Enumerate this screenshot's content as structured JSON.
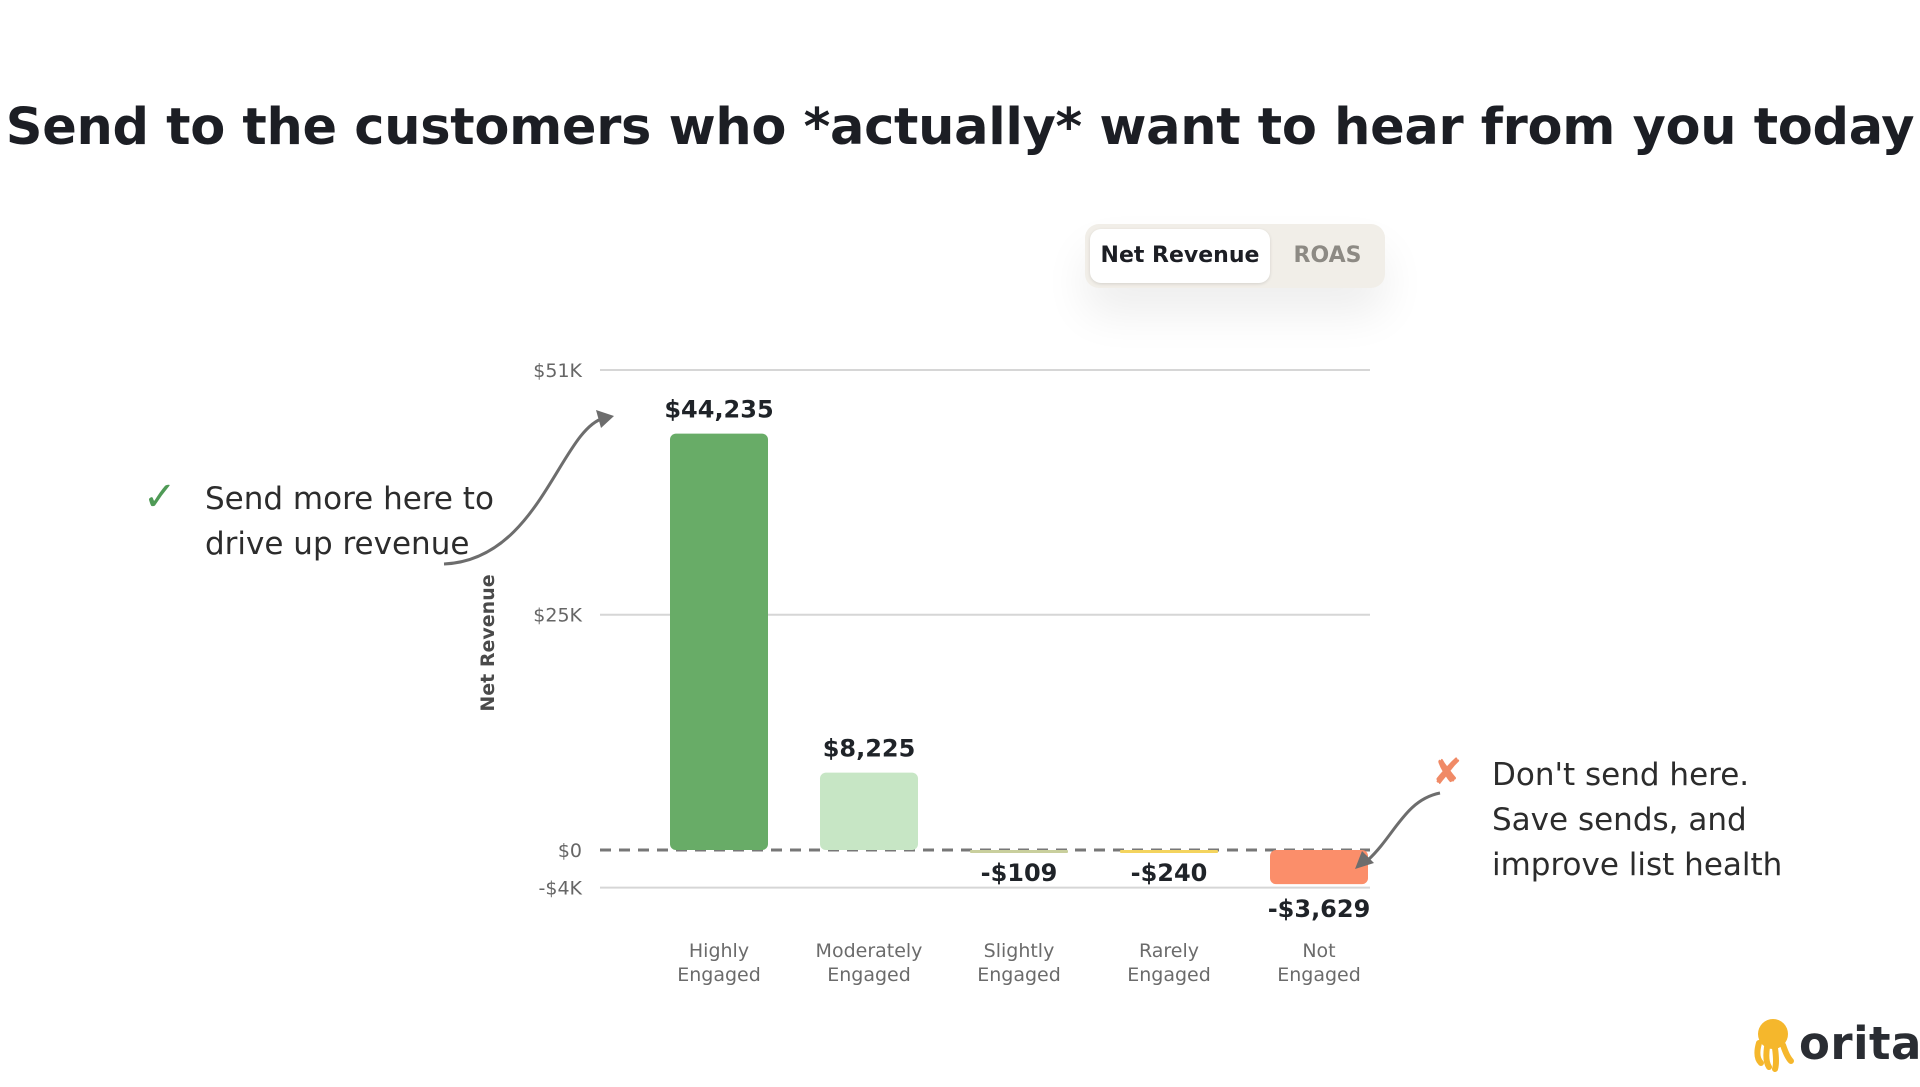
{
  "page": {
    "title": "Send to the customers who *actually* want to hear from you today"
  },
  "toggle": {
    "options": [
      "Net Revenue",
      "ROAS"
    ],
    "selected": "Net Revenue",
    "active_bg": "#ffffff",
    "track_bg": "#f1eee8"
  },
  "annotations": {
    "left": "Send more here to drive up revenue",
    "left_icon": "check-icon",
    "left_mark": "✓",
    "right": "Don't send here. Save sends, and improve list health",
    "right_icon": "cross-icon",
    "right_mark": "✘"
  },
  "logo": {
    "text": "orita",
    "icon": "octopus-logo-icon",
    "color": "#f5b72c"
  },
  "chart_data": {
    "type": "bar",
    "ylabel": "Net Revenue",
    "xlabel": "",
    "ylim": [
      -4000,
      51000
    ],
    "yticks": [
      {
        "value": 51000,
        "label": "$51K"
      },
      {
        "value": 25000,
        "label": "$25K"
      },
      {
        "value": 0,
        "label": "$0"
      },
      {
        "value": -4000,
        "label": "-$4K"
      }
    ],
    "zero_line": "dashed",
    "grid": true,
    "categories": [
      [
        "Highly",
        "Engaged"
      ],
      [
        "Moderately",
        "Engaged"
      ],
      [
        "Slightly",
        "Engaged"
      ],
      [
        "Rarely",
        "Engaged"
      ],
      [
        "Not",
        "Engaged"
      ]
    ],
    "values": [
      44235,
      8225,
      -109,
      -240,
      -3629
    ],
    "value_labels": [
      "$44,235",
      "$8,225",
      "-$109",
      "-$240",
      "-$3,629"
    ],
    "colors": [
      "#68ac67",
      "#c7e6c5",
      "#c9cf9d",
      "#f4d45e",
      "#fb8e6a"
    ]
  }
}
